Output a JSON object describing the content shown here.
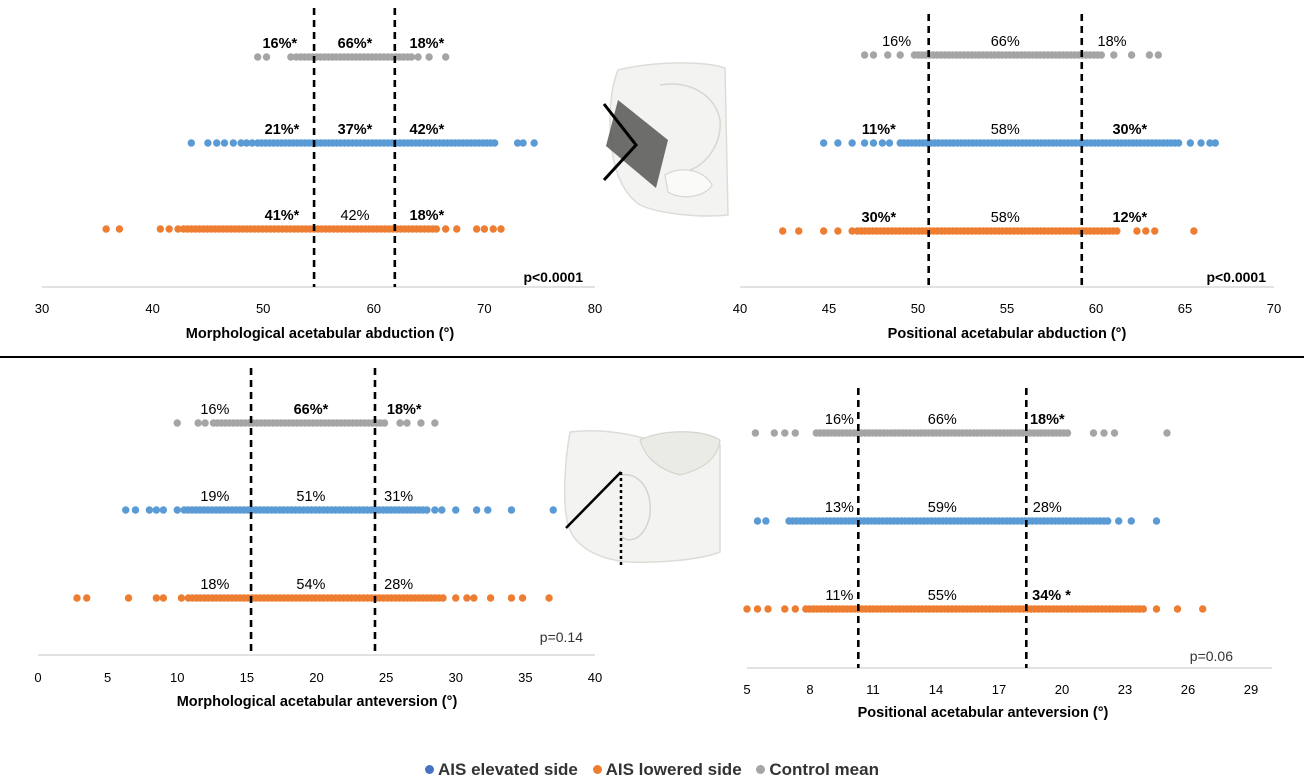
{
  "colors": {
    "elevated": "#5b9bd5",
    "lowered": "#ed7d31",
    "control": "#a5a5a5",
    "threshold_line": "#000000",
    "axis": "#d9d9d9"
  },
  "legend": {
    "items": [
      {
        "label": "AIS elevated side",
        "color": "#4472c4"
      },
      {
        "label": "AIS lowered side",
        "color": "#ed7d31"
      },
      {
        "label": "Control mean",
        "color": "#a5a5a5"
      }
    ]
  },
  "chart_data": [
    {
      "type": "scatter",
      "id": "morph-abduction",
      "xlabel": "Morphological acetabular abduction (°)",
      "xlim": [
        30,
        80
      ],
      "xticks": [
        30,
        40,
        50,
        60,
        70,
        80
      ],
      "thresholds": [
        54.6,
        61.9
      ],
      "pvalue": {
        "text": "p<0.0001",
        "bold": true
      },
      "series": [
        {
          "key": "control",
          "color": "#a5a5a5",
          "range": [
            49.5,
            66.5
          ],
          "outliers": [
            49.5,
            50.3,
            52.5,
            53.0,
            64.0,
            65.0,
            66.5
          ],
          "dense": [
            53.4,
            63.5
          ],
          "labels": [
            {
              "text": "16%*",
              "x": 51.5,
              "bold": true
            },
            {
              "text": "66%*",
              "x": 58.3,
              "bold": true
            },
            {
              "text": "18%*",
              "x": 64.8,
              "bold": true
            }
          ]
        },
        {
          "key": "elevated",
          "color": "#5b9bd5",
          "range": [
            43.5,
            74.5
          ],
          "outliers": [
            43.5,
            45.0,
            45.8,
            46.5,
            47.3,
            48.0,
            48.5,
            49.0,
            73.0,
            73.5,
            74.5
          ],
          "dense": [
            49.5,
            71.0
          ],
          "labels": [
            {
              "text": "21%*",
              "x": 51.7,
              "bold": true
            },
            {
              "text": "37%*",
              "x": 58.3,
              "bold": true
            },
            {
              "text": "42%*",
              "x": 64.8,
              "bold": true
            }
          ]
        },
        {
          "key": "lowered",
          "color": "#ed7d31",
          "range": [
            35.8,
            71.5
          ],
          "outliers": [
            35.8,
            37.0,
            40.7,
            41.5,
            42.3,
            66.5,
            67.5,
            69.3,
            70.0,
            70.8,
            71.5
          ],
          "dense": [
            42.8,
            65.8
          ],
          "labels": [
            {
              "text": "41%*",
              "x": 51.7,
              "bold": true
            },
            {
              "text": "42%",
              "x": 58.3,
              "bold": false
            },
            {
              "text": "18%*",
              "x": 64.8,
              "bold": true
            }
          ]
        }
      ]
    },
    {
      "type": "scatter",
      "id": "pos-abduction",
      "xlabel": "Positional acetabular abduction (°)",
      "xlim": [
        40,
        70
      ],
      "xticks": [
        40,
        45,
        50,
        55,
        60,
        65,
        70
      ],
      "thresholds": [
        50.6,
        59.2
      ],
      "pvalue": {
        "text": "p<0.0001",
        "bold": true
      },
      "series": [
        {
          "key": "control",
          "color": "#a5a5a5",
          "range": [
            47.0,
            63.5
          ],
          "outliers": [
            47.0,
            47.5,
            48.3,
            49.0,
            61.0,
            62.0,
            63.0,
            63.5
          ],
          "dense": [
            49.8,
            60.5
          ],
          "labels": [
            {
              "text": "16%",
              "x": 48.8,
              "bold": false
            },
            {
              "text": "66%",
              "x": 54.9,
              "bold": false
            },
            {
              "text": "18%",
              "x": 60.9,
              "bold": false
            }
          ]
        },
        {
          "key": "elevated",
          "color": "#5b9bd5",
          "range": [
            44.7,
            66.7
          ],
          "outliers": [
            44.7,
            45.5,
            46.3,
            47.0,
            47.5,
            48.0,
            48.4,
            65.3,
            65.9,
            66.4,
            66.7
          ],
          "dense": [
            49.0,
            64.7
          ],
          "labels": [
            {
              "text": "11%*",
              "x": 47.8,
              "bold": true
            },
            {
              "text": "58%",
              "x": 54.9,
              "bold": false
            },
            {
              "text": "30%*",
              "x": 61.9,
              "bold": true
            }
          ]
        },
        {
          "key": "lowered",
          "color": "#ed7d31",
          "range": [
            42.4,
            65.5
          ],
          "outliers": [
            42.4,
            43.3,
            44.7,
            45.5,
            46.3,
            62.3,
            62.8,
            63.3,
            65.5
          ],
          "dense": [
            46.6,
            61.3
          ],
          "labels": [
            {
              "text": "30%*",
              "x": 47.8,
              "bold": true
            },
            {
              "text": "58%",
              "x": 54.9,
              "bold": false
            },
            {
              "text": "12%*",
              "x": 61.9,
              "bold": true
            }
          ]
        }
      ]
    },
    {
      "type": "scatter",
      "id": "morph-anteversion",
      "xlabel": "Morphological acetabular anteversion (°)",
      "xlim": [
        0,
        40
      ],
      "xticks": [
        0,
        5,
        10,
        15,
        20,
        25,
        30,
        35,
        40
      ],
      "thresholds": [
        15.3,
        24.2
      ],
      "pvalue": {
        "text": "p=0.14",
        "bold": false
      },
      "series": [
        {
          "key": "control",
          "color": "#a5a5a5",
          "range": [
            10.0,
            28.5
          ],
          "outliers": [
            10.0,
            11.5,
            12.0,
            26.0,
            26.5,
            27.5,
            28.5
          ],
          "dense": [
            12.6,
            25.0
          ],
          "labels": [
            {
              "text": "16%",
              "x": 12.7,
              "bold": false
            },
            {
              "text": "66%*",
              "x": 19.6,
              "bold": true
            },
            {
              "text": "18%*",
              "x": 26.3,
              "bold": true
            }
          ]
        },
        {
          "key": "elevated",
          "color": "#5b9bd5",
          "range": [
            6.3,
            37.0
          ],
          "outliers": [
            6.3,
            7.0,
            8.0,
            8.5,
            9.0,
            10.0,
            28.5,
            29.0,
            30.0,
            31.5,
            32.3,
            34.0,
            37.0
          ],
          "dense": [
            10.5,
            28.0
          ],
          "labels": [
            {
              "text": "19%",
              "x": 12.7,
              "bold": false
            },
            {
              "text": "51%",
              "x": 19.6,
              "bold": false
            },
            {
              "text": "31%",
              "x": 25.9,
              "bold": false
            }
          ]
        },
        {
          "key": "lowered",
          "color": "#ed7d31",
          "range": [
            2.8,
            36.7
          ],
          "outliers": [
            2.8,
            3.5,
            6.5,
            8.5,
            9.0,
            10.3,
            30.0,
            30.8,
            31.3,
            32.5,
            34.0,
            34.8,
            36.7
          ],
          "dense": [
            10.8,
            29.3
          ],
          "labels": [
            {
              "text": "18%",
              "x": 12.7,
              "bold": false
            },
            {
              "text": "54%",
              "x": 19.6,
              "bold": false
            },
            {
              "text": "28%",
              "x": 25.9,
              "bold": false
            }
          ]
        }
      ]
    },
    {
      "type": "scatter",
      "id": "pos-anteversion",
      "xlabel": "Positional acetabular anteversion (°)",
      "xlim": [
        5,
        30
      ],
      "xticks": [
        5,
        8,
        11,
        14,
        17,
        20,
        23,
        26,
        29
      ],
      "xtick_labels_only": [
        5,
        8,
        11,
        14,
        17,
        20,
        23,
        26,
        29
      ],
      "thresholds": [
        10.3,
        18.3
      ],
      "pvalue": {
        "text": "p=0.06",
        "bold": false
      },
      "series": [
        {
          "key": "control",
          "color": "#a5a5a5",
          "range": [
            5.4,
            25.0
          ],
          "outliers": [
            5.4,
            6.3,
            6.8,
            7.3,
            21.5,
            22.0,
            22.5,
            25.0
          ],
          "dense": [
            8.3,
            20.3
          ],
          "labels": [
            {
              "text": "16%",
              "x": 9.4,
              "bold": false
            },
            {
              "text": "66%",
              "x": 14.3,
              "bold": false
            },
            {
              "text": "18%*",
              "x": 19.3,
              "bold": true
            }
          ]
        },
        {
          "key": "elevated",
          "color": "#5b9bd5",
          "range": [
            5.5,
            24.5
          ],
          "outliers": [
            5.5,
            5.9,
            22.7,
            23.3,
            24.5
          ],
          "dense": [
            7.0,
            22.3
          ],
          "labels": [
            {
              "text": "13%",
              "x": 9.4,
              "bold": false
            },
            {
              "text": "59%",
              "x": 14.3,
              "bold": false
            },
            {
              "text": "28%",
              "x": 19.3,
              "bold": false
            }
          ]
        },
        {
          "key": "lowered",
          "color": "#ed7d31",
          "range": [
            5.0,
            26.7
          ],
          "outliers": [
            5.0,
            5.5,
            6.0,
            6.8,
            7.3,
            24.5,
            25.5,
            26.7
          ],
          "dense": [
            7.8,
            24.0
          ],
          "labels": [
            {
              "text": "11%",
              "x": 9.4,
              "bold": false
            },
            {
              "text": "55%",
              "x": 14.3,
              "bold": false
            },
            {
              "text": "34% *",
              "x": 19.5,
              "bold": true
            }
          ]
        }
      ]
    }
  ]
}
